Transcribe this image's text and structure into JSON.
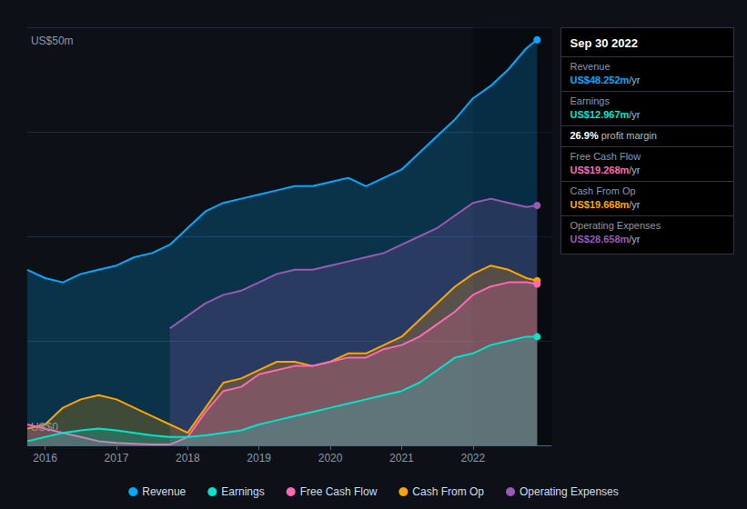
{
  "chart_data": {
    "type": "area",
    "xlim": [
      2015.75,
      2023.1
    ],
    "xticks": [
      2016,
      2017,
      2018,
      2019,
      2020,
      2021,
      2022
    ],
    "ylim": [
      0,
      50
    ],
    "yticks": [
      0,
      12.5,
      25,
      37.5,
      50
    ],
    "grid": true,
    "tick_labels": "x",
    "legend": "bottom",
    "highlight_x": [
      2022.0,
      2023.1
    ],
    "annotations": [
      {
        "text": "US$50m",
        "x": 2015.8,
        "y": 49.0
      },
      {
        "text": "US$0",
        "x": 2015.8,
        "y": 1.5
      }
    ],
    "info_box": {
      "title": "Sep 30 2022",
      "rows": [
        {
          "label": "Revenue",
          "value": "US$48.252m",
          "unit": "/yr",
          "color": "#00aaff"
        },
        {
          "label": "Earnings",
          "value": "US$12.967m",
          "unit": "/yr",
          "color": "#00e5cc"
        },
        {
          "value": "26.9%",
          "unit": " profit margin",
          "color": "#ffffff"
        },
        {
          "label": "Free Cash Flow",
          "value": "US$19.268m",
          "unit": "/yr",
          "color": "#ff69b4"
        },
        {
          "label": "Cash From Op",
          "value": "US$19.668m",
          "unit": "/yr",
          "color": "#ffa500"
        },
        {
          "label": "Operating Expenses",
          "value": "US$28.658m",
          "unit": "/yr",
          "color": "#9b59b6"
        }
      ]
    },
    "series": [
      {
        "name": "Revenue",
        "color": "#00aaff",
        "x": [
          2015.75,
          2016.0,
          2016.25,
          2016.5,
          2016.75,
          2017.0,
          2017.25,
          2017.5,
          2017.75,
          2018.0,
          2018.25,
          2018.5,
          2018.75,
          2019.0,
          2019.25,
          2019.5,
          2019.75,
          2020.0,
          2020.25,
          2020.5,
          2020.75,
          2021.0,
          2021.25,
          2021.5,
          2021.75,
          2022.0,
          2022.25,
          2022.5,
          2022.75,
          2022.9
        ],
        "values": [
          21.0,
          20.0,
          19.5,
          20.5,
          21.0,
          21.5,
          22.5,
          23.0,
          24.0,
          26.0,
          28.0,
          29.0,
          29.5,
          30.0,
          30.5,
          31.0,
          31.0,
          31.5,
          32.0,
          31.0,
          32.0,
          33.0,
          35.0,
          37.0,
          39.0,
          41.5,
          43.0,
          45.0,
          47.5,
          48.5
        ]
      },
      {
        "name": "Earnings",
        "color": "#00e5cc",
        "x": [
          2015.75,
          2016.0,
          2016.25,
          2016.5,
          2016.75,
          2017.0,
          2017.25,
          2017.5,
          2017.75,
          2018.0,
          2018.25,
          2018.5,
          2018.75,
          2019.0,
          2019.25,
          2019.5,
          2019.75,
          2020.0,
          2020.25,
          2020.5,
          2020.75,
          2021.0,
          2021.25,
          2021.5,
          2021.75,
          2022.0,
          2022.25,
          2022.5,
          2022.75,
          2022.9
        ],
        "values": [
          0.5,
          1.0,
          1.5,
          1.8,
          2.0,
          1.8,
          1.5,
          1.2,
          1.0,
          1.0,
          1.2,
          1.5,
          1.8,
          2.5,
          3.0,
          3.5,
          4.0,
          4.5,
          5.0,
          5.5,
          6.0,
          6.5,
          7.5,
          9.0,
          10.5,
          11.0,
          12.0,
          12.5,
          13.0,
          13.0
        ]
      },
      {
        "name": "Free Cash Flow",
        "color": "#ff69b4",
        "x": [
          2015.75,
          2016.0,
          2016.25,
          2016.5,
          2016.75,
          2017.0,
          2017.25,
          2017.5,
          2017.75,
          2018.0,
          2018.25,
          2018.5,
          2018.75,
          2019.0,
          2019.25,
          2019.5,
          2019.75,
          2020.0,
          2020.25,
          2020.5,
          2020.75,
          2021.0,
          2021.25,
          2021.5,
          2021.75,
          2022.0,
          2022.25,
          2022.5,
          2022.75,
          2022.9
        ],
        "values": [
          2.5,
          2.0,
          1.5,
          1.0,
          0.5,
          0.3,
          0.2,
          0.1,
          0.1,
          1.0,
          4.0,
          6.5,
          7.0,
          8.5,
          9.0,
          9.5,
          9.5,
          10.0,
          10.5,
          10.5,
          11.5,
          12.0,
          13.0,
          14.5,
          16.0,
          18.0,
          19.0,
          19.5,
          19.5,
          19.3
        ]
      },
      {
        "name": "Cash From Op",
        "color": "#ffa500",
        "x": [
          2015.75,
          2016.0,
          2016.25,
          2016.5,
          2016.75,
          2017.0,
          2017.25,
          2017.5,
          2017.75,
          2018.0,
          2018.25,
          2018.5,
          2018.75,
          2019.0,
          2019.25,
          2019.5,
          2019.75,
          2020.0,
          2020.25,
          2020.5,
          2020.75,
          2021.0,
          2021.25,
          2021.5,
          2021.75,
          2022.0,
          2022.25,
          2022.5,
          2022.75,
          2022.9
        ],
        "values": [
          2.0,
          2.5,
          4.5,
          5.5,
          6.0,
          5.5,
          4.5,
          3.5,
          2.5,
          1.5,
          4.5,
          7.5,
          8.0,
          9.0,
          10.0,
          10.0,
          9.5,
          10.0,
          11.0,
          11.0,
          12.0,
          13.0,
          15.0,
          17.0,
          19.0,
          20.5,
          21.5,
          21.0,
          20.0,
          19.7
        ]
      },
      {
        "name": "Operating Expenses",
        "color": "#9b59b6",
        "x": [
          2017.75,
          2018.0,
          2018.25,
          2018.5,
          2018.75,
          2019.0,
          2019.25,
          2019.5,
          2019.75,
          2020.0,
          2020.25,
          2020.5,
          2020.75,
          2021.0,
          2021.25,
          2021.5,
          2021.75,
          2022.0,
          2022.25,
          2022.5,
          2022.75,
          2022.9
        ],
        "values": [
          14.0,
          15.5,
          17.0,
          18.0,
          18.5,
          19.5,
          20.5,
          21.0,
          21.0,
          21.5,
          22.0,
          22.5,
          23.0,
          24.0,
          25.0,
          26.0,
          27.5,
          29.0,
          29.5,
          29.0,
          28.5,
          28.7
        ]
      }
    ]
  }
}
